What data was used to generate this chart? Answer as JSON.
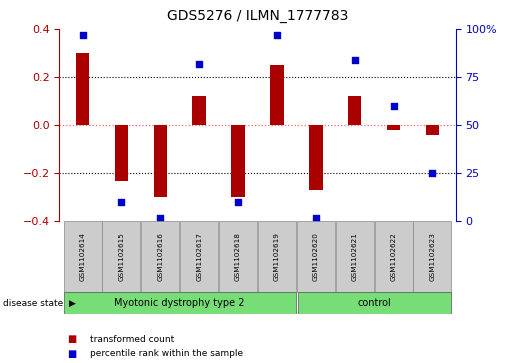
{
  "title": "GDS5276 / ILMN_1777783",
  "samples": [
    "GSM1102614",
    "GSM1102615",
    "GSM1102616",
    "GSM1102617",
    "GSM1102618",
    "GSM1102619",
    "GSM1102620",
    "GSM1102621",
    "GSM1102622",
    "GSM1102623"
  ],
  "transformed_count": [
    0.3,
    -0.23,
    -0.3,
    0.12,
    -0.3,
    0.25,
    -0.27,
    0.12,
    -0.02,
    -0.04
  ],
  "percentile_rank": [
    97,
    10,
    2,
    82,
    10,
    97,
    2,
    84,
    60,
    25
  ],
  "ylim_left": [
    -0.4,
    0.4
  ],
  "ylim_right": [
    0,
    100
  ],
  "yticks_left": [
    -0.4,
    -0.2,
    0.0,
    0.2,
    0.4
  ],
  "yticks_right": [
    0,
    25,
    50,
    75,
    100
  ],
  "bar_color": "#AA0000",
  "dot_color": "#0000CC",
  "grid_color": "#000000",
  "zero_line_color": "#FF6666",
  "legend_items": [
    {
      "label": "transformed count",
      "color": "#AA0000"
    },
    {
      "label": "percentile rank within the sample",
      "color": "#0000CC"
    }
  ],
  "group1_label": "Myotonic dystrophy type 2",
  "group1_count": 6,
  "group2_label": "control",
  "group2_count": 4,
  "disease_state_label": "disease state",
  "bar_width": 0.35,
  "dot_size": 18
}
